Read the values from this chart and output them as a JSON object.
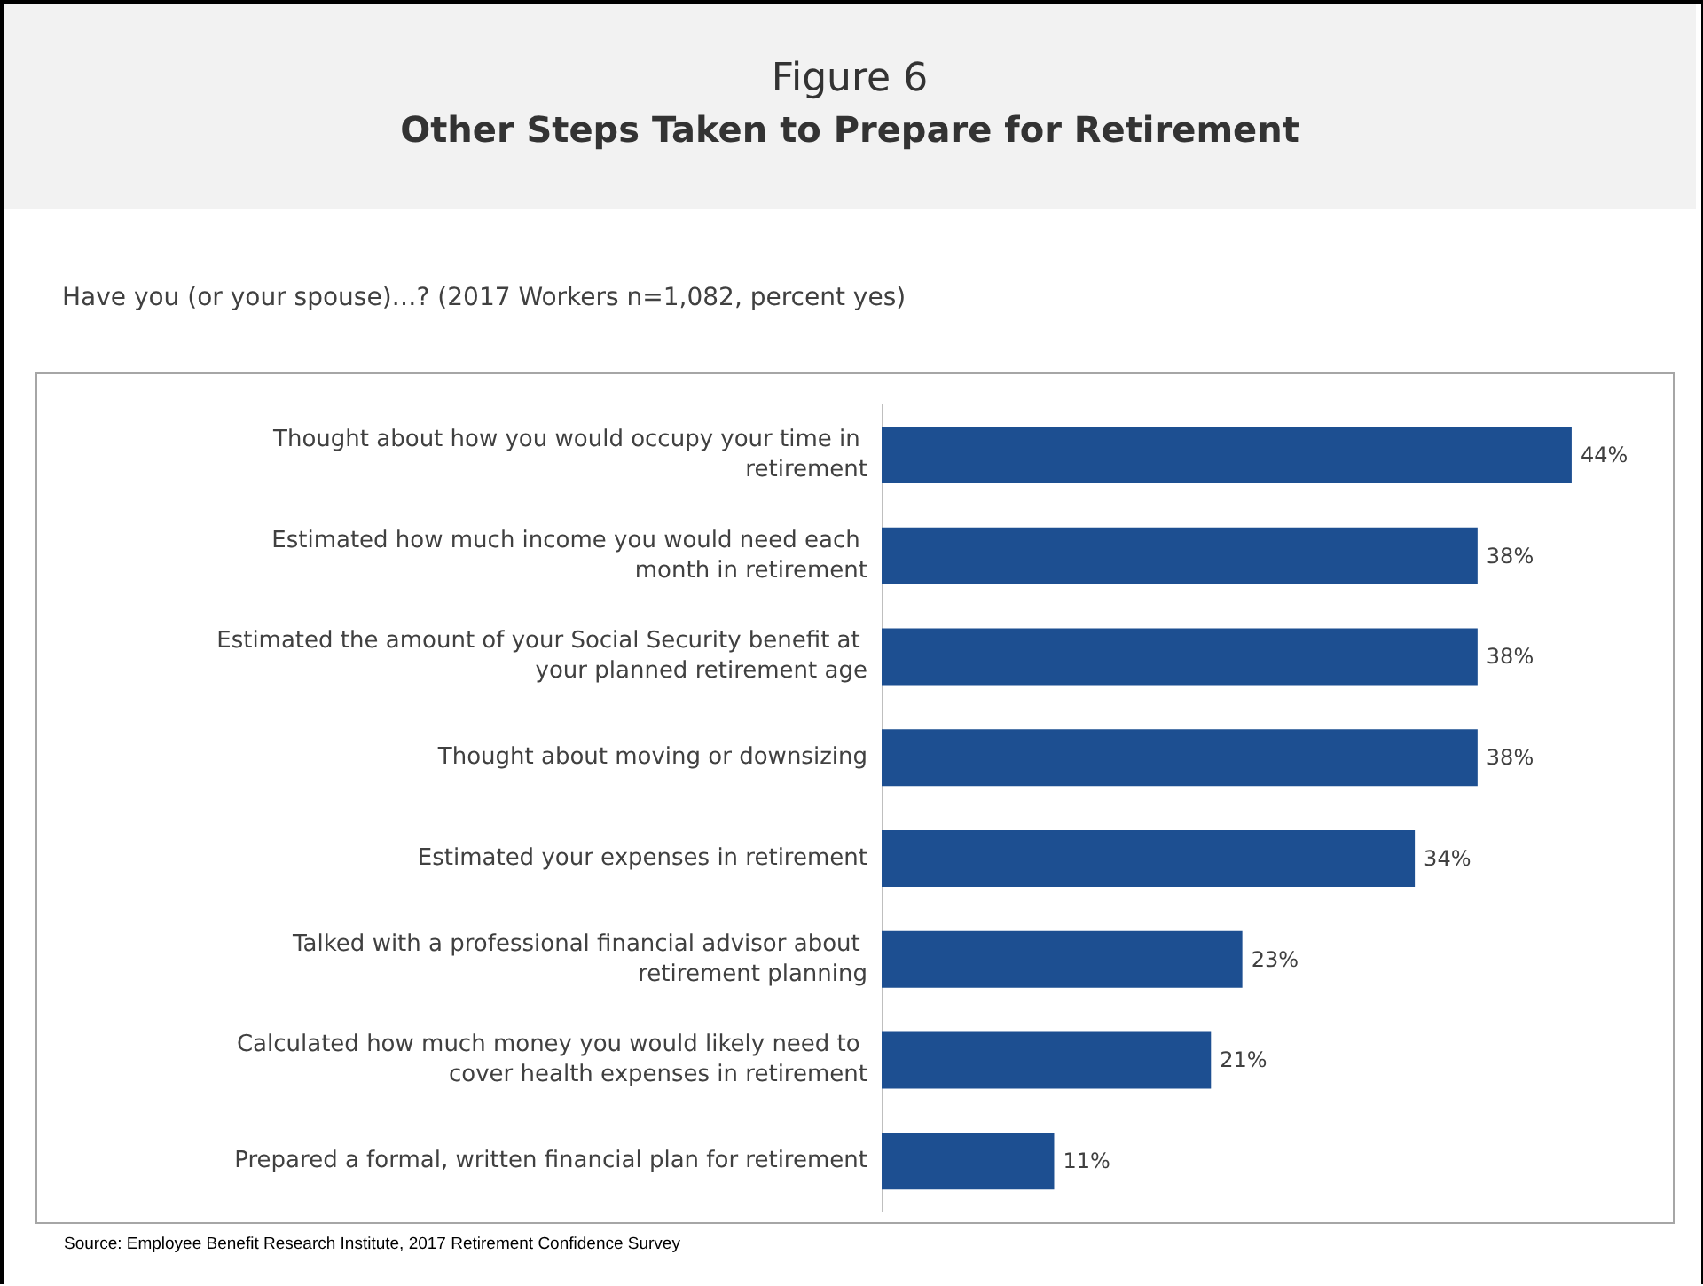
{
  "chart_data": {
    "type": "bar",
    "orientation": "horizontal",
    "title": "Figure 6",
    "subtitle": "Other Steps Taken to Prepare for Retirement",
    "annotations": [
      "Have you (or your spouse)…? (2017 Workers n=1,082, percent yes)",
      "Source:  Employee Benefit Research Institute, 2017 Retirement Confidence Survey"
    ],
    "categories": [
      "Thought about how you would occupy your time in retirement",
      "Estimated how much income you would need each month in retirement",
      "Estimated the amount of your Social Security benefit at your planned retirement age",
      "Thought about moving or downsizing",
      "Estimated your expenses in retirement",
      "Talked with a professional financial advisor about retirement planning",
      "Calculated how much money you would likely need to cover health expenses in retirement",
      "Prepared a formal, written financial plan for retirement"
    ],
    "values": [
      44,
      38,
      38,
      38,
      34,
      23,
      21,
      11
    ],
    "value_labels": [
      "44%",
      "38%",
      "38%",
      "38%",
      "34%",
      "23%",
      "21%",
      "11%"
    ],
    "color": "#1d4f91",
    "tick_labels": "y"
  }
}
